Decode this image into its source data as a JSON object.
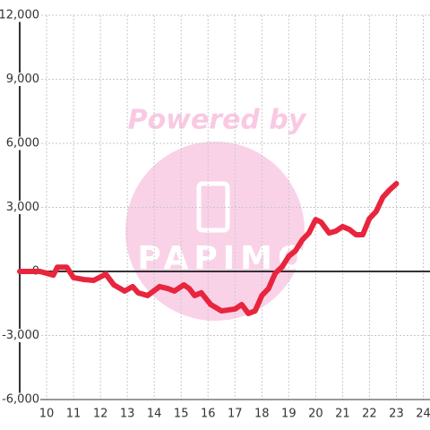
{
  "chart_data": {
    "type": "line",
    "watermark": "Powered by",
    "watermark_logo": "PAPIMO",
    "x": [
      9,
      9.75,
      10.25,
      10.4,
      10.75,
      11,
      11.4,
      11.75,
      12.2,
      12.5,
      12.9,
      13.2,
      13.4,
      13.75,
      14.2,
      14.5,
      14.75,
      15.1,
      15.3,
      15.5,
      15.75,
      16.1,
      16.5,
      17,
      17.25,
      17.5,
      17.75,
      18,
      18.25,
      18.5,
      18.75,
      19,
      19.25,
      19.5,
      19.75,
      20,
      20.2,
      20.5,
      20.75,
      21,
      21.25,
      21.5,
      21.75,
      22,
      22.25,
      22.5,
      22.75,
      23
    ],
    "series": [
      {
        "color": "#e8253d",
        "values": [
          0,
          0,
          -170,
          200,
          200,
          -290,
          -380,
          -420,
          -130,
          -630,
          -920,
          -710,
          -1000,
          -1130,
          -710,
          -800,
          -920,
          -630,
          -800,
          -1130,
          -1000,
          -1550,
          -1850,
          -1760,
          -1550,
          -1970,
          -1850,
          -1130,
          -800,
          -80,
          210,
          710,
          970,
          1470,
          1800,
          2430,
          2310,
          1800,
          1890,
          2100,
          1970,
          1720,
          1720,
          2480,
          2810,
          3480,
          3820,
          4110
        ]
      }
    ],
    "xlim": [
      9,
      24.25
    ],
    "xticks": [
      10,
      11,
      12,
      13,
      14,
      15,
      16,
      17,
      18,
      19,
      20,
      21,
      22,
      23,
      24
    ],
    "ylim": [
      -6000,
      12000
    ],
    "yticks": [
      {
        "value": -6000,
        "label": "-6,000"
      },
      {
        "value": -3000,
        "label": "-3,000"
      },
      0,
      {
        "value": 3000,
        "label": "3,000"
      },
      {
        "value": 6000,
        "label": "6,000"
      },
      {
        "value": 9000,
        "label": "9,000"
      },
      {
        "value": 12000,
        "label": "12,000"
      }
    ],
    "grid": true
  }
}
